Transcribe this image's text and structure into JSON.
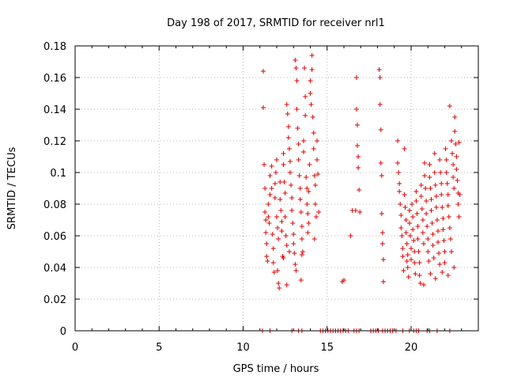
{
  "chart_data": {
    "type": "scatter",
    "title": "Day 198 of 2017, SRMTID for receiver nrl1",
    "xlabel": "GPS time / hours",
    "ylabel": "SRMTID / TECUs",
    "xlim": [
      0,
      24
    ],
    "ylim": [
      0,
      0.18
    ],
    "x_ticks": [
      0,
      5,
      10,
      15,
      20
    ],
    "x_tick_labels": [
      "0",
      "5",
      "10",
      "15",
      "20"
    ],
    "y_ticks": [
      0,
      0.02,
      0.04,
      0.06,
      0.08,
      0.1,
      0.12,
      0.14,
      0.16,
      0.18
    ],
    "y_tick_labels": [
      "0",
      "0.02",
      "0.04",
      "0.06",
      "0.08",
      "0.1",
      "0.12",
      "0.14",
      "0.16",
      "0.18"
    ],
    "grid": true,
    "legend": "none",
    "marker": "plus",
    "marker_color": "#e00000",
    "series": [
      {
        "points": [
          [
            11.2,
            0.164
          ],
          [
            11.2,
            0.141
          ],
          [
            11.25,
            0.105
          ],
          [
            11.3,
            0.09
          ],
          [
            11.3,
            0.075
          ],
          [
            11.35,
            0.07
          ],
          [
            11.35,
            0.062
          ],
          [
            11.4,
            0.055
          ],
          [
            11.4,
            0.047
          ],
          [
            11.45,
            0.044
          ],
          [
            11.5,
            0.08
          ],
          [
            11.5,
            0.072
          ],
          [
            11.55,
            0.068
          ],
          [
            11.6,
            0.098
          ],
          [
            11.6,
            0.086
          ],
          [
            11.7,
            0.104
          ],
          [
            11.7,
            0.09
          ],
          [
            11.75,
            0.061
          ],
          [
            11.8,
            0.052
          ],
          [
            11.8,
            0.043
          ],
          [
            11.85,
            0.037
          ],
          [
            11.9,
            0.084
          ],
          [
            11.9,
            0.093
          ],
          [
            11.95,
            0.1
          ],
          [
            12.0,
            0.108
          ],
          [
            12.0,
            0.072
          ],
          [
            12.05,
            0.065
          ],
          [
            12.1,
            0.058
          ],
          [
            12.1,
            0.03
          ],
          [
            12.15,
            0.027
          ],
          [
            12.2,
            0.094
          ],
          [
            12.2,
            0.083
          ],
          [
            12.25,
            0.076
          ],
          [
            12.3,
            0.069
          ],
          [
            12.3,
            0.063
          ],
          [
            12.35,
            0.047
          ],
          [
            12.4,
            0.112
          ],
          [
            12.4,
            0.105
          ],
          [
            12.45,
            0.094
          ],
          [
            12.5,
            0.087
          ],
          [
            12.5,
            0.072
          ],
          [
            12.55,
            0.06
          ],
          [
            12.6,
            0.054
          ],
          [
            12.6,
            0.143
          ],
          [
            12.65,
            0.137
          ],
          [
            12.7,
            0.129
          ],
          [
            12.7,
            0.122
          ],
          [
            12.75,
            0.115
          ],
          [
            12.8,
            0.107
          ],
          [
            12.8,
            0.1
          ],
          [
            12.85,
            0.092
          ],
          [
            12.9,
            0.084
          ],
          [
            12.9,
            0.076
          ],
          [
            12.95,
            0.068
          ],
          [
            13.0,
            0.061
          ],
          [
            13.0,
            0.055
          ],
          [
            13.05,
            0.049
          ],
          [
            13.1,
            0.042
          ],
          [
            13.1,
            0.171
          ],
          [
            13.15,
            0.166
          ],
          [
            13.2,
            0.158
          ],
          [
            13.2,
            0.14
          ],
          [
            13.25,
            0.128
          ],
          [
            13.3,
            0.118
          ],
          [
            13.3,
            0.108
          ],
          [
            13.35,
            0.098
          ],
          [
            13.4,
            0.09
          ],
          [
            13.4,
            0.083
          ],
          [
            13.45,
            0.075
          ],
          [
            13.5,
            0.066
          ],
          [
            13.5,
            0.058
          ],
          [
            13.55,
            0.05
          ],
          [
            13.6,
            0.113
          ],
          [
            13.6,
            0.12
          ],
          [
            13.65,
            0.166
          ],
          [
            13.7,
            0.148
          ],
          [
            13.7,
            0.136
          ],
          [
            13.75,
            0.097
          ],
          [
            13.8,
            0.09
          ],
          [
            13.8,
            0.08
          ],
          [
            13.85,
            0.074
          ],
          [
            13.9,
            0.068
          ],
          [
            13.9,
            0.088
          ],
          [
            13.95,
            0.105
          ],
          [
            14.0,
            0.158
          ],
          [
            14.0,
            0.15
          ],
          [
            14.05,
            0.143
          ],
          [
            14.1,
            0.174
          ],
          [
            14.1,
            0.165
          ],
          [
            14.15,
            0.135
          ],
          [
            14.2,
            0.125
          ],
          [
            14.2,
            0.115
          ],
          [
            14.25,
            0.098
          ],
          [
            14.3,
            0.092
          ],
          [
            14.3,
            0.08
          ],
          [
            14.35,
            0.072
          ],
          [
            14.4,
            0.12
          ],
          [
            14.4,
            0.108
          ],
          [
            14.45,
            0.099
          ],
          [
            14.5,
            0.075
          ],
          [
            12.05,
            0.038
          ],
          [
            12.4,
            0.046
          ],
          [
            12.75,
            0.05
          ],
          [
            13.15,
            0.038
          ],
          [
            13.5,
            0.048
          ],
          [
            13.85,
            0.062
          ],
          [
            14.25,
            0.058
          ],
          [
            12.6,
            0.029
          ],
          [
            13.45,
            0.032
          ],
          [
            15.9,
            0.031
          ],
          [
            16.0,
            0.032
          ],
          [
            16.4,
            0.06
          ],
          [
            16.5,
            0.076
          ],
          [
            16.7,
            0.076
          ],
          [
            16.75,
            0.16
          ],
          [
            16.75,
            0.14
          ],
          [
            16.8,
            0.13
          ],
          [
            16.8,
            0.117
          ],
          [
            16.85,
            0.11
          ],
          [
            16.85,
            0.103
          ],
          [
            16.9,
            0.089
          ],
          [
            16.95,
            0.075
          ],
          [
            18.1,
            0.165
          ],
          [
            18.15,
            0.16
          ],
          [
            18.15,
            0.143
          ],
          [
            18.2,
            0.127
          ],
          [
            18.2,
            0.106
          ],
          [
            18.25,
            0.098
          ],
          [
            18.25,
            0.074
          ],
          [
            18.3,
            0.062
          ],
          [
            18.3,
            0.055
          ],
          [
            18.35,
            0.045
          ],
          [
            18.35,
            0.031
          ],
          [
            19.2,
            0.12
          ],
          [
            19.2,
            0.106
          ],
          [
            19.25,
            0.1
          ],
          [
            19.3,
            0.093
          ],
          [
            19.3,
            0.088
          ],
          [
            19.35,
            0.08
          ],
          [
            19.4,
            0.073
          ],
          [
            19.4,
            0.065
          ],
          [
            19.45,
            0.06
          ],
          [
            19.5,
            0.052
          ],
          [
            19.5,
            0.047
          ],
          [
            19.55,
            0.038
          ],
          [
            19.6,
            0.115
          ],
          [
            19.6,
            0.086
          ],
          [
            19.65,
            0.078
          ],
          [
            19.7,
            0.07
          ],
          [
            19.7,
            0.062
          ],
          [
            19.75,
            0.055
          ],
          [
            19.8,
            0.048
          ],
          [
            19.8,
            0.04
          ],
          [
            19.85,
            0.034
          ],
          [
            19.9,
            0.076
          ],
          [
            19.9,
            0.068
          ],
          [
            19.95,
            0.06
          ],
          [
            20.0,
            0.052
          ],
          [
            20.0,
            0.045
          ],
          [
            20.05,
            0.08
          ],
          [
            20.1,
            0.072
          ],
          [
            20.1,
            0.064
          ],
          [
            20.15,
            0.057
          ],
          [
            20.2,
            0.05
          ],
          [
            20.2,
            0.043
          ],
          [
            20.3,
            0.088
          ],
          [
            20.3,
            0.082
          ],
          [
            20.35,
            0.074
          ],
          [
            20.4,
            0.066
          ],
          [
            20.4,
            0.058
          ],
          [
            20.45,
            0.05
          ],
          [
            20.5,
            0.043
          ],
          [
            20.5,
            0.035
          ],
          [
            20.55,
            0.03
          ],
          [
            20.6,
            0.092
          ],
          [
            20.6,
            0.085
          ],
          [
            20.65,
            0.077
          ],
          [
            20.7,
            0.07
          ],
          [
            20.7,
            0.062
          ],
          [
            20.75,
            0.055
          ],
          [
            20.8,
            0.106
          ],
          [
            20.8,
            0.098
          ],
          [
            20.85,
            0.09
          ],
          [
            20.9,
            0.082
          ],
          [
            20.9,
            0.074
          ],
          [
            20.95,
            0.066
          ],
          [
            21.0,
            0.058
          ],
          [
            21.0,
            0.05
          ],
          [
            21.05,
            0.044
          ],
          [
            21.1,
            0.105
          ],
          [
            21.1,
            0.097
          ],
          [
            21.15,
            0.09
          ],
          [
            21.2,
            0.083
          ],
          [
            21.2,
            0.076
          ],
          [
            21.25,
            0.068
          ],
          [
            21.3,
            0.061
          ],
          [
            21.3,
            0.054
          ],
          [
            21.35,
            0.046
          ],
          [
            21.4,
            0.112
          ],
          [
            21.4,
            0.1
          ],
          [
            21.45,
            0.092
          ],
          [
            21.5,
            0.085
          ],
          [
            21.5,
            0.078
          ],
          [
            21.55,
            0.07
          ],
          [
            21.6,
            0.063
          ],
          [
            21.6,
            0.056
          ],
          [
            21.65,
            0.049
          ],
          [
            21.7,
            0.042
          ],
          [
            21.7,
            0.108
          ],
          [
            21.75,
            0.1
          ],
          [
            21.8,
            0.093
          ],
          [
            21.8,
            0.086
          ],
          [
            21.85,
            0.078
          ],
          [
            21.9,
            0.071
          ],
          [
            21.9,
            0.064
          ],
          [
            21.95,
            0.057
          ],
          [
            22.0,
            0.05
          ],
          [
            22.0,
            0.043
          ],
          [
            22.05,
            0.115
          ],
          [
            22.1,
            0.108
          ],
          [
            22.1,
            0.1
          ],
          [
            22.15,
            0.093
          ],
          [
            22.2,
            0.086
          ],
          [
            22.2,
            0.079
          ],
          [
            22.25,
            0.072
          ],
          [
            22.3,
            0.142
          ],
          [
            22.3,
            0.065
          ],
          [
            22.35,
            0.058
          ],
          [
            22.4,
            0.05
          ],
          [
            22.4,
            0.12
          ],
          [
            22.45,
            0.112
          ],
          [
            22.5,
            0.105
          ],
          [
            22.5,
            0.097
          ],
          [
            22.55,
            0.09
          ],
          [
            22.6,
            0.135
          ],
          [
            22.6,
            0.126
          ],
          [
            22.65,
            0.118
          ],
          [
            22.7,
            0.11
          ],
          [
            22.7,
            0.102
          ],
          [
            22.75,
            0.095
          ],
          [
            22.8,
            0.087
          ],
          [
            22.8,
            0.08
          ],
          [
            22.85,
            0.072
          ],
          [
            22.85,
            0.119
          ],
          [
            22.9,
            0.086
          ],
          [
            22.55,
            0.04
          ],
          [
            22.2,
            0.035
          ],
          [
            21.85,
            0.037
          ],
          [
            21.45,
            0.033
          ],
          [
            21.15,
            0.036
          ],
          [
            20.75,
            0.029
          ],
          [
            20.25,
            0.036
          ],
          [
            19.75,
            0.044
          ],
          [
            11.15,
            0
          ],
          [
            11.6,
            0
          ],
          [
            12.9,
            0
          ],
          [
            13.3,
            0
          ],
          [
            13.5,
            0
          ],
          [
            14.6,
            0
          ],
          [
            14.75,
            0
          ],
          [
            14.9,
            0
          ],
          [
            15.05,
            0
          ],
          [
            15.2,
            0
          ],
          [
            15.35,
            0
          ],
          [
            15.5,
            0
          ],
          [
            15.65,
            0
          ],
          [
            15.8,
            0
          ],
          [
            15.95,
            0
          ],
          [
            16.1,
            0
          ],
          [
            16.25,
            0
          ],
          [
            16.6,
            0
          ],
          [
            16.75,
            0
          ],
          [
            16.9,
            0
          ],
          [
            17.6,
            0
          ],
          [
            17.75,
            0
          ],
          [
            17.9,
            0
          ],
          [
            18.05,
            0
          ],
          [
            18.3,
            0
          ],
          [
            18.45,
            0
          ],
          [
            18.6,
            0
          ],
          [
            18.75,
            0
          ],
          [
            18.9,
            0
          ],
          [
            19.1,
            0
          ],
          [
            19.5,
            0
          ],
          [
            19.9,
            0
          ],
          [
            20.15,
            0
          ],
          [
            20.3,
            0
          ],
          [
            20.45,
            0
          ],
          [
            20.95,
            0
          ],
          [
            21.1,
            0
          ],
          [
            21.55,
            0
          ],
          [
            22.3,
            0
          ]
        ]
      }
    ]
  }
}
